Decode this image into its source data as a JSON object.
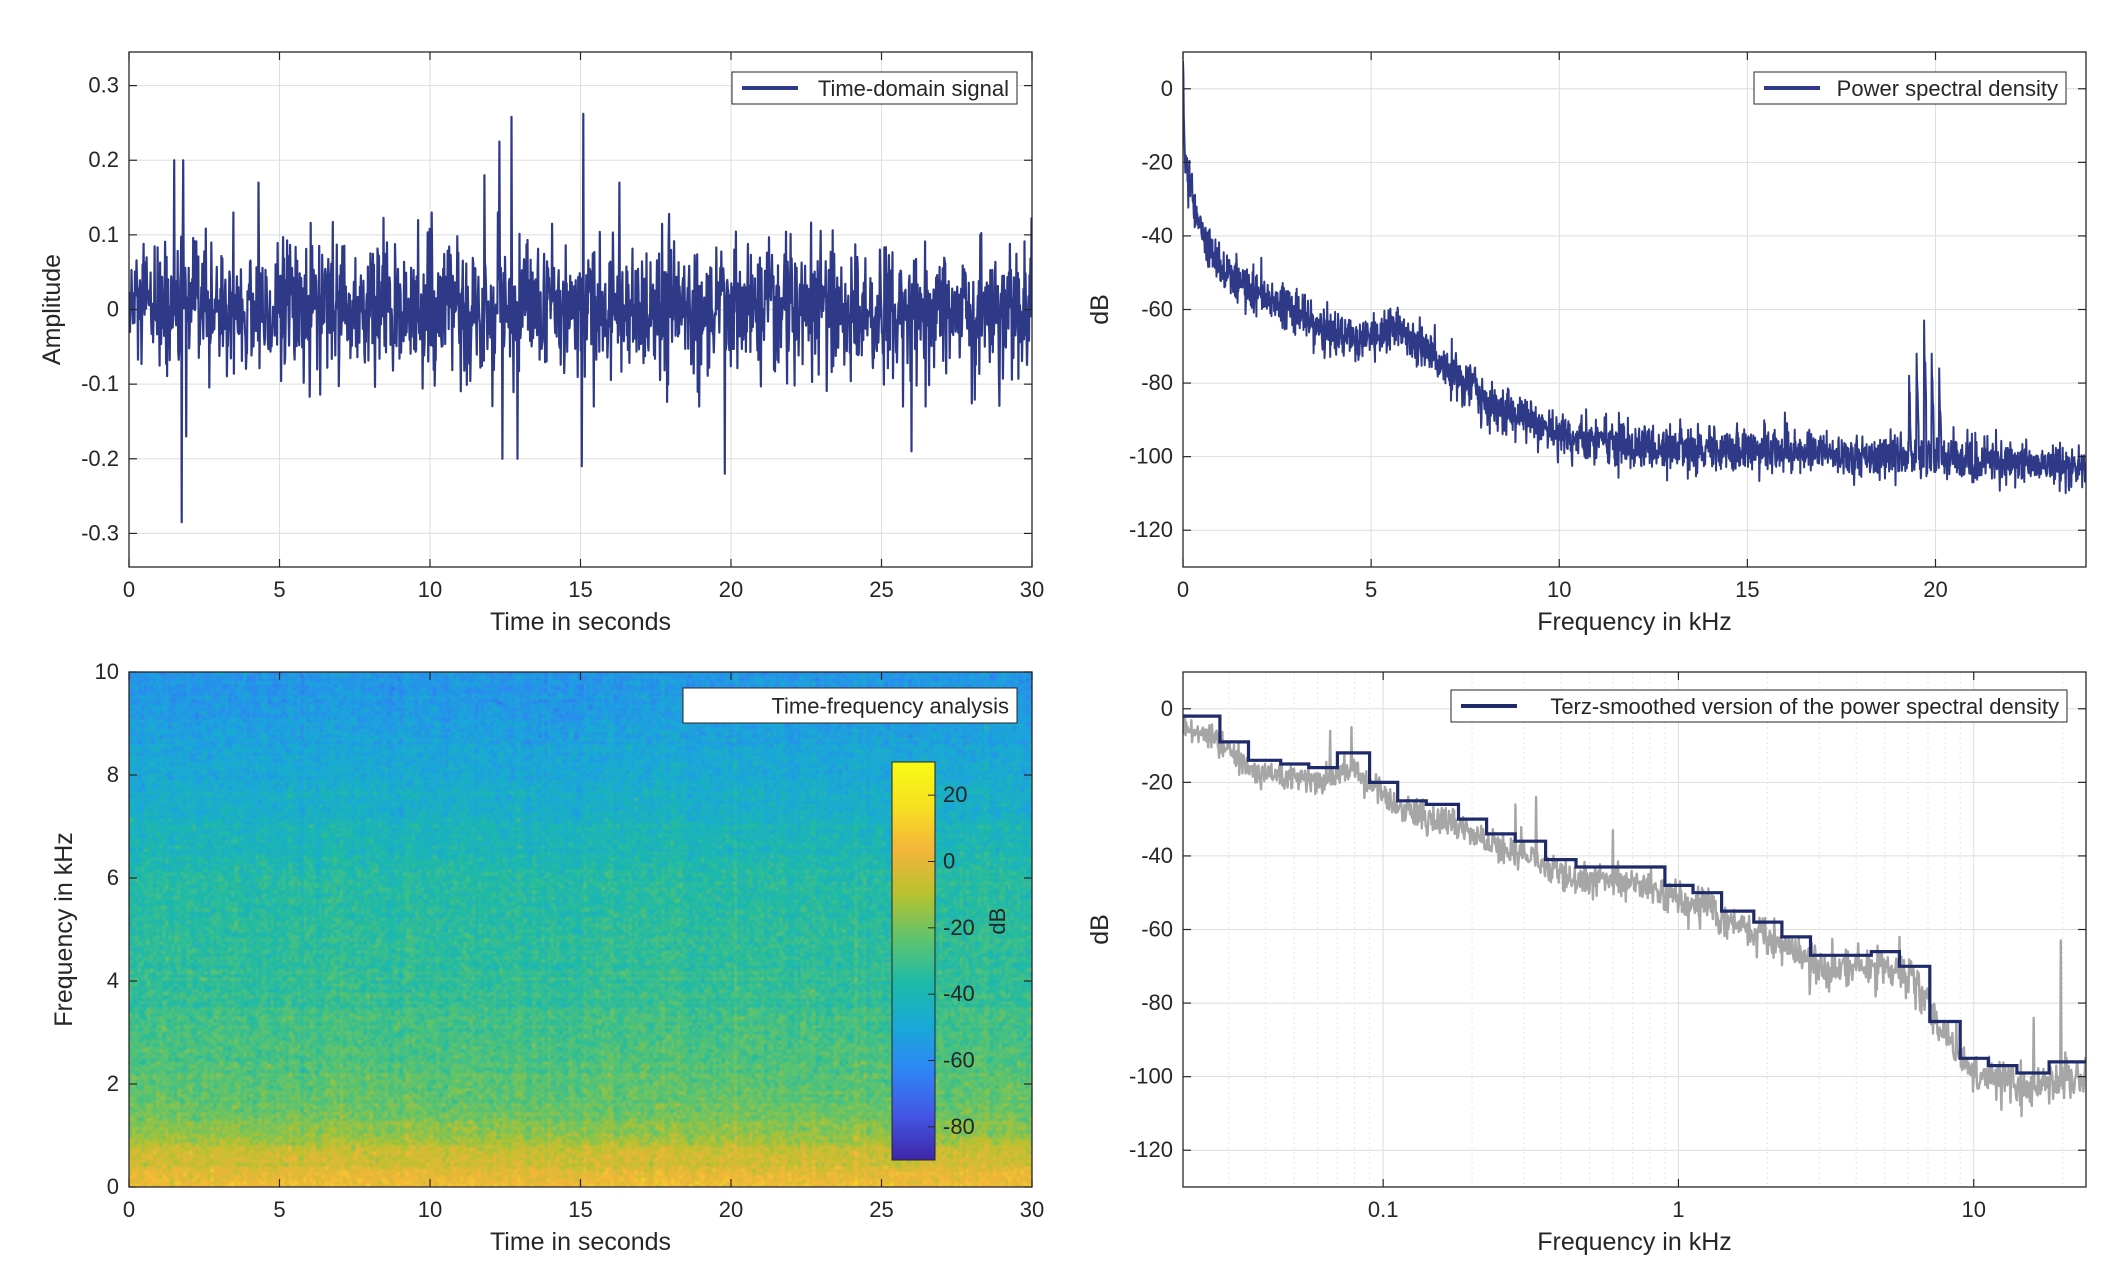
{
  "figure": {
    "background": "#ffffff"
  },
  "chart_data": [
    {
      "type": "line",
      "panel": "top-left",
      "xlabel": "Time in seconds",
      "ylabel": "Amplitude",
      "xlim": [
        0,
        30
      ],
      "ylim": [
        -0.345,
        0.345
      ],
      "xticks": [
        0,
        5,
        10,
        15,
        20,
        25,
        30
      ],
      "yticks": [
        -0.3,
        -0.2,
        -0.1,
        0,
        0.1,
        0.2,
        0.3
      ],
      "grid": true,
      "legend": {
        "position": "top-right",
        "entries": [
          "Time-domain signal"
        ]
      },
      "series": [
        {
          "name": "Time-domain signal",
          "color": "#2e3a87",
          "noise_std": 0.045,
          "envelope_min": -0.13,
          "envelope_max": 0.13,
          "spikes": [
            {
              "x": 1.5,
              "y": 0.2
            },
            {
              "x": 1.8,
              "y": 0.2
            },
            {
              "x": 1.75,
              "y": -0.285
            },
            {
              "x": 1.9,
              "y": -0.17
            },
            {
              "x": 11.8,
              "y": 0.18
            },
            {
              "x": 12.3,
              "y": 0.225
            },
            {
              "x": 12.7,
              "y": 0.258
            },
            {
              "x": 12.4,
              "y": -0.2
            },
            {
              "x": 12.9,
              "y": -0.2
            },
            {
              "x": 15.1,
              "y": 0.262
            },
            {
              "x": 15.05,
              "y": -0.21
            },
            {
              "x": 19.8,
              "y": -0.22
            },
            {
              "x": 16.3,
              "y": 0.17
            },
            {
              "x": 26.0,
              "y": -0.19
            },
            {
              "x": 4.3,
              "y": 0.17
            }
          ]
        }
      ]
    },
    {
      "type": "line",
      "panel": "top-right",
      "xlabel": "Frequency in kHz",
      "ylabel": "dB",
      "xlim": [
        0,
        24
      ],
      "ylim": [
        -130,
        10
      ],
      "xticks": [
        0,
        5,
        10,
        15,
        20
      ],
      "yticks": [
        -120,
        -100,
        -80,
        -60,
        -40,
        -20,
        0
      ],
      "grid": true,
      "legend": {
        "position": "top-right",
        "entries": [
          "Power spectral density"
        ]
      },
      "series": [
        {
          "name": "Power spectral density",
          "color": "#2e3a87",
          "noise_db": 3,
          "envelope_points": [
            {
              "f": 0.0,
              "db": 5
            },
            {
              "f": 0.05,
              "db": -20
            },
            {
              "f": 0.3,
              "db": -32
            },
            {
              "f": 0.6,
              "db": -42
            },
            {
              "f": 1.0,
              "db": -48
            },
            {
              "f": 2.0,
              "db": -56
            },
            {
              "f": 3.0,
              "db": -61
            },
            {
              "f": 4.0,
              "db": -66
            },
            {
              "f": 5.0,
              "db": -68
            },
            {
              "f": 5.6,
              "db": -65
            },
            {
              "f": 6.5,
              "db": -71
            },
            {
              "f": 7.5,
              "db": -80
            },
            {
              "f": 8.5,
              "db": -88
            },
            {
              "f": 10.0,
              "db": -94
            },
            {
              "f": 12.0,
              "db": -97
            },
            {
              "f": 15.0,
              "db": -98
            },
            {
              "f": 19.0,
              "db": -100
            },
            {
              "f": 21.0,
              "db": -101
            },
            {
              "f": 24.0,
              "db": -103
            }
          ],
          "peaks": [
            {
              "f": 16.0,
              "db": -88
            },
            {
              "f": 19.3,
              "db": -78
            },
            {
              "f": 19.5,
              "db": -72
            },
            {
              "f": 19.7,
              "db": -63
            },
            {
              "f": 19.9,
              "db": -72
            },
            {
              "f": 20.1,
              "db": -76
            }
          ]
        }
      ]
    },
    {
      "type": "heatmap",
      "panel": "bottom-left",
      "xlabel": "Time in seconds",
      "ylabel": "Frequency in kHz",
      "xlim": [
        0,
        30
      ],
      "ylim": [
        0,
        10
      ],
      "xticks": [
        0,
        5,
        10,
        15,
        20,
        25,
        30
      ],
      "yticks": [
        0,
        2,
        4,
        6,
        8,
        10
      ],
      "legend": {
        "position": "top-right",
        "entries": [
          "Time-frequency analysis"
        ]
      },
      "colorbar": {
        "label": "dB",
        "range": [
          -90,
          30
        ],
        "ticks": [
          -80,
          -60,
          -40,
          -20,
          0,
          20
        ],
        "colormap": [
          "#3e26a8",
          "#4456e5",
          "#2f84f5",
          "#19a8d9",
          "#1dbaa8",
          "#5ec46d",
          "#b7c22e",
          "#f4b53a",
          "#f6e020",
          "#f9fb15"
        ]
      },
      "profile_db": [
        {
          "f": 0.0,
          "db": 5
        },
        {
          "f": 0.5,
          "db": -4
        },
        {
          "f": 0.8,
          "db": -8
        },
        {
          "f": 1.0,
          "db": -16
        },
        {
          "f": 2.0,
          "db": -25
        },
        {
          "f": 4.0,
          "db": -32
        },
        {
          "f": 6.0,
          "db": -36
        },
        {
          "f": 7.0,
          "db": -42
        },
        {
          "f": 8.0,
          "db": -48
        },
        {
          "f": 9.0,
          "db": -54
        },
        {
          "f": 10.0,
          "db": -57
        }
      ]
    },
    {
      "type": "line",
      "panel": "bottom-right",
      "xlabel": "Frequency in kHz",
      "ylabel": "dB",
      "xscale": "log",
      "xlim": [
        0.021,
        24
      ],
      "ylim": [
        -130,
        10
      ],
      "xticks": [
        0.1,
        1,
        10
      ],
      "xticklabels": [
        "0.1",
        "1",
        "10"
      ],
      "yticks": [
        -120,
        -100,
        -80,
        -60,
        -40,
        -20,
        0
      ],
      "grid": true,
      "legend": {
        "position": "top-right",
        "entries": [
          "Terz-smoothed version of the power spectral density"
        ]
      },
      "series": [
        {
          "name": "Terz-smoothed version of the power spectral density",
          "color": "#1f2a6b",
          "steps": [
            {
              "f0": 0.021,
              "f1": 0.028,
              "db": -2
            },
            {
              "f0": 0.028,
              "f1": 0.035,
              "db": -9
            },
            {
              "f0": 0.035,
              "f1": 0.045,
              "db": -14
            },
            {
              "f0": 0.045,
              "f1": 0.056,
              "db": -15
            },
            {
              "f0": 0.056,
              "f1": 0.07,
              "db": -16
            },
            {
              "f0": 0.07,
              "f1": 0.09,
              "db": -12
            },
            {
              "f0": 0.09,
              "f1": 0.112,
              "db": -20
            },
            {
              "f0": 0.112,
              "f1": 0.14,
              "db": -25
            },
            {
              "f0": 0.14,
              "f1": 0.18,
              "db": -26
            },
            {
              "f0": 0.18,
              "f1": 0.224,
              "db": -30
            },
            {
              "f0": 0.224,
              "f1": 0.28,
              "db": -34
            },
            {
              "f0": 0.28,
              "f1": 0.355,
              "db": -36
            },
            {
              "f0": 0.355,
              "f1": 0.45,
              "db": -41
            },
            {
              "f0": 0.45,
              "f1": 0.56,
              "db": -43
            },
            {
              "f0": 0.56,
              "f1": 0.9,
              "db": -43
            },
            {
              "f0": 0.9,
              "f1": 1.12,
              "db": -48
            },
            {
              "f0": 1.12,
              "f1": 1.4,
              "db": -50
            },
            {
              "f0": 1.4,
              "f1": 1.8,
              "db": -55
            },
            {
              "f0": 1.8,
              "f1": 2.24,
              "db": -58
            },
            {
              "f0": 2.24,
              "f1": 2.8,
              "db": -62
            },
            {
              "f0": 2.8,
              "f1": 3.55,
              "db": -67
            },
            {
              "f0": 3.55,
              "f1": 4.5,
              "db": -67
            },
            {
              "f0": 4.5,
              "f1": 5.6,
              "db": -66
            },
            {
              "f0": 5.6,
              "f1": 7.1,
              "db": -70
            },
            {
              "f0": 7.1,
              "f1": 9.0,
              "db": -85
            },
            {
              "f0": 9.0,
              "f1": 11.2,
              "db": -95
            },
            {
              "f0": 11.2,
              "f1": 14.0,
              "db": -97
            },
            {
              "f0": 14.0,
              "f1": 18.0,
              "db": -99
            },
            {
              "f0": 18.0,
              "f1": 24.0,
              "db": -96
            }
          ]
        },
        {
          "name": "",
          "color": "#a6a6a6",
          "noise_db": 3,
          "offset_db": -4,
          "peaks": [
            {
              "f": 0.066,
              "db": -6
            },
            {
              "f": 0.078,
              "db": -5
            },
            {
              "f": 0.28,
              "db": -26
            },
            {
              "f": 0.33,
              "db": -24
            },
            {
              "f": 0.6,
              "db": -33
            },
            {
              "f": 5.6,
              "db": -62
            },
            {
              "f": 16.0,
              "db": -84
            },
            {
              "f": 19.7,
              "db": -63
            }
          ]
        }
      ]
    }
  ]
}
